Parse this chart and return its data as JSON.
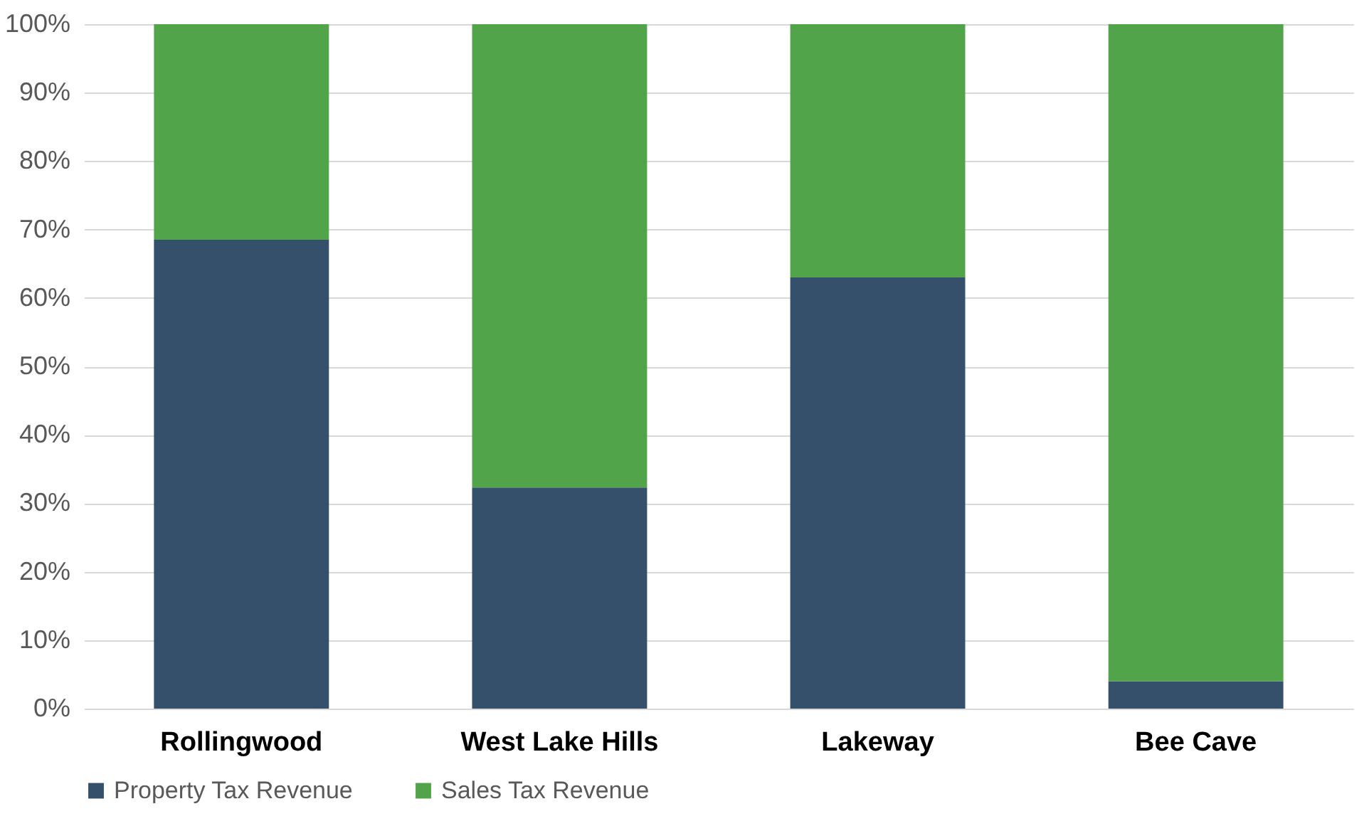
{
  "chart_data": {
    "type": "bar",
    "stacked": true,
    "categories": [
      "Rollingwood",
      "West Lake Hills",
      "Lakeway",
      "Bee Cave"
    ],
    "series": [
      {
        "name": "Property Tax Revenue",
        "color": "#34506b",
        "values": [
          68.5,
          32.3,
          63.0,
          4.0
        ]
      },
      {
        "name": "Sales Tax Revenue",
        "color": "#52a44a",
        "values": [
          31.5,
          67.7,
          37.0,
          96.0
        ]
      }
    ],
    "ylim": [
      0,
      100
    ],
    "yticks": [
      {
        "value": 0,
        "label": "0%"
      },
      {
        "value": 10,
        "label": "10%"
      },
      {
        "value": 20,
        "label": "20%"
      },
      {
        "value": 30,
        "label": "30%"
      },
      {
        "value": 40,
        "label": "40%"
      },
      {
        "value": 50,
        "label": "50%"
      },
      {
        "value": 60,
        "label": "60%"
      },
      {
        "value": 70,
        "label": "70%"
      },
      {
        "value": 80,
        "label": "80%"
      },
      {
        "value": 90,
        "label": "90%"
      },
      {
        "value": 100,
        "label": "100%"
      }
    ],
    "grid": "y",
    "legend": "bottom"
  }
}
